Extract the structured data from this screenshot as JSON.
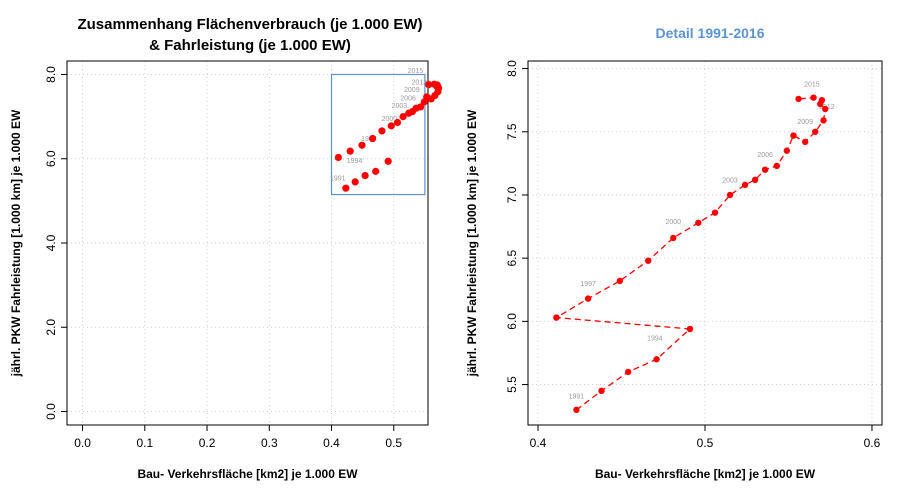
{
  "chart_data": [
    {
      "type": "scatter",
      "title": [
        "Zusammenhang Flächenverbrauch (je 1.000 EW)",
        "& Fahrleistung (je 1.000 EW)"
      ],
      "xlabel": "Bau- Verkehrsfläche [km2] je 1.000 EW",
      "ylabel": "jährl. PKW Fahrleistung [1.000 km] je 1.000 EW",
      "xlim": [
        -0.025,
        0.555
      ],
      "ylim": [
        -0.32,
        8.32
      ],
      "xticks": [
        0.0,
        0.1,
        0.2,
        0.3,
        0.4,
        0.5
      ],
      "xtick_labels": [
        "0.0",
        "0.1",
        "0.2",
        "0.3",
        "0.4",
        "0.5"
      ],
      "yticks": [
        0.0,
        2.0,
        4.0,
        6.0,
        8.0
      ],
      "ytick_labels": [
        "0.0",
        "2.0",
        "4.0",
        "6.0",
        "8.0"
      ],
      "grid": true,
      "point_color": "#ff0000",
      "detail_box_color": "#5b93d3",
      "detail_box": {
        "x": [
          0.4,
          0.55
        ],
        "y": [
          5.15,
          8.0
        ]
      },
      "annotations": [
        {
          "text": "1991",
          "x": 0.41,
          "y": 5.48
        },
        {
          "text": "1994",
          "x": 0.437,
          "y": 5.9
        },
        {
          "text": "1997",
          "x": 0.46,
          "y": 6.42
        },
        {
          "text": "2000",
          "x": 0.493,
          "y": 6.9
        },
        {
          "text": "2003",
          "x": 0.509,
          "y": 7.2
        },
        {
          "text": "2006",
          "x": 0.523,
          "y": 7.38
        },
        {
          "text": "2009",
          "x": 0.529,
          "y": 7.58
        },
        {
          "text": "2012",
          "x": 0.541,
          "y": 7.76
        },
        {
          "text": "2015",
          "x": 0.535,
          "y": 8.04
        }
      ],
      "x": [
        0.423,
        0.438,
        0.454,
        0.471,
        0.491,
        0.411,
        0.43,
        0.449,
        0.466,
        0.481,
        0.496,
        0.506,
        0.515,
        0.524,
        0.53,
        0.536,
        0.543,
        0.549,
        0.553,
        0.56,
        0.566,
        0.571,
        0.572,
        0.569,
        0.57,
        0.565,
        0.556
      ],
      "y": [
        5.3,
        5.45,
        5.6,
        5.7,
        5.94,
        6.03,
        6.18,
        6.32,
        6.48,
        6.66,
        6.78,
        6.86,
        7.0,
        7.08,
        7.12,
        7.2,
        7.23,
        7.35,
        7.47,
        7.42,
        7.5,
        7.59,
        7.68,
        7.72,
        7.75,
        7.77,
        7.76
      ]
    },
    {
      "type": "line",
      "title": "Detail 1991-2016",
      "xlabel": "Bau- Verkehrsfläche [km2] je 1.000 EW",
      "ylabel": "jährl. PKW Fahrleistung [1.000 km] je 1.000 EW",
      "xlim": [
        0.394,
        0.606
      ],
      "ylim": [
        5.18,
        8.06
      ],
      "xticks": [
        0.4,
        0.5,
        0.6
      ],
      "xtick_labels": [
        "0.4",
        "0.5",
        "0.6"
      ],
      "yticks": [
        5.5,
        6.0,
        6.5,
        7.0,
        7.5,
        8.0
      ],
      "ytick_labels": [
        "5.5",
        "6.0",
        "6.5",
        "7.0",
        "7.5",
        "8.0"
      ],
      "grid": true,
      "line_style": "dashed",
      "point_color": "#ff0000",
      "annotations": [
        {
          "text": "1991",
          "x": 0.423,
          "y": 5.39
        },
        {
          "text": "1994",
          "x": 0.47,
          "y": 5.85
        },
        {
          "text": "1997",
          "x": 0.43,
          "y": 6.28
        },
        {
          "text": "2000",
          "x": 0.481,
          "y": 6.77
        },
        {
          "text": "2003",
          "x": 0.515,
          "y": 7.1
        },
        {
          "text": "2006",
          "x": 0.536,
          "y": 7.3
        },
        {
          "text": "2009",
          "x": 0.56,
          "y": 7.56
        },
        {
          "text": "2012",
          "x": 0.573,
          "y": 7.68
        },
        {
          "text": "2015",
          "x": 0.564,
          "y": 7.86
        }
      ],
      "x": [
        0.423,
        0.438,
        0.454,
        0.471,
        0.491,
        0.411,
        0.43,
        0.449,
        0.466,
        0.481,
        0.496,
        0.506,
        0.515,
        0.524,
        0.53,
        0.536,
        0.543,
        0.549,
        0.553,
        0.56,
        0.566,
        0.571,
        0.572,
        0.569,
        0.57,
        0.565,
        0.556
      ],
      "y": [
        5.3,
        5.45,
        5.6,
        5.7,
        5.94,
        6.03,
        6.18,
        6.32,
        6.48,
        6.66,
        6.78,
        6.86,
        7.0,
        7.08,
        7.12,
        7.2,
        7.23,
        7.35,
        7.47,
        7.42,
        7.5,
        7.59,
        7.68,
        7.72,
        7.75,
        7.77,
        7.76
      ]
    }
  ]
}
